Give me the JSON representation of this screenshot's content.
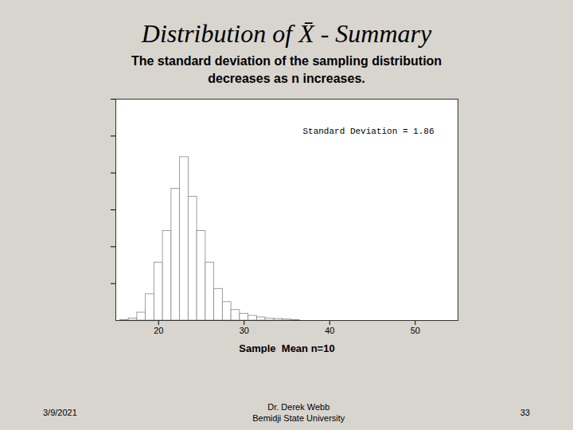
{
  "chart_data": {
    "type": "histogram",
    "title": "Distribution of X̄ - Summary",
    "subtitle": [
      "The standard deviation of the sampling distribution",
      "decreases as n increases."
    ],
    "annotation": "Standard Deviation = 1.86",
    "footer": [
      "3/9/2021",
      "Dr. Derek Webb",
      "Bemidji State University",
      "33"
    ],
    "xlabel": "Sample  Mean n=10",
    "bins": [
      15.5,
      16.5,
      17.5,
      18.5,
      19.5,
      20.5,
      21.5,
      22.5,
      23.5,
      24.5,
      25.5,
      26.5,
      27.5,
      28.5,
      29.5,
      30.5,
      31.5,
      32.5,
      33.5,
      34.5,
      35.5,
      36.5
    ],
    "values": [
      1,
      4,
      15,
      50,
      110,
      170,
      250,
      310,
      235,
      170,
      110,
      60,
      35,
      20,
      13,
      9,
      6,
      4,
      3,
      2,
      1
    ],
    "color": "#ffffff",
    "xlim": [
      15,
      55
    ],
    "xticks": [
      20,
      30,
      40,
      50
    ],
    "ylim": [
      0,
      420
    ],
    "yticks": [
      70,
      140,
      210,
      280,
      350,
      420
    ],
    "tick_labels": "x",
    "grid": false
  }
}
